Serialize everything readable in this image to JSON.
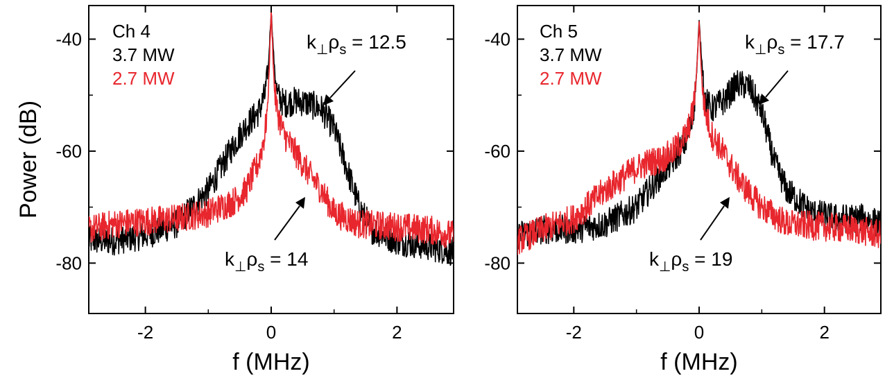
{
  "figure": {
    "ylabel": "Power (dB)",
    "colors": {
      "series_high": "#000000",
      "series_low": "#e8262d"
    }
  },
  "chart_data": [
    {
      "type": "line",
      "xlabel": "f (MHz)",
      "ylabel": "Power (dB)",
      "xlim": [
        -2.9,
        2.9
      ],
      "ylim": [
        -89,
        -34
      ],
      "xticks": [
        "-2",
        "0",
        "2"
      ],
      "yticks": [
        "-40",
        "-60",
        "-80"
      ],
      "legend_position": "top-left",
      "legend": {
        "title": "Ch 4",
        "entries": [
          "3.7 MW",
          "2.7 MW"
        ]
      },
      "series": [
        {
          "name": "3.7 MW",
          "color": "#000000",
          "x": [
            -2.9,
            -2.5,
            -2.0,
            -1.5,
            -1.0,
            -0.8,
            -0.6,
            -0.4,
            -0.2,
            -0.1,
            -0.05,
            0.0,
            0.05,
            0.1,
            0.2,
            0.4,
            0.6,
            0.8,
            1.0,
            1.2,
            1.4,
            1.6,
            2.0,
            2.5,
            2.9
          ],
          "y": [
            -76,
            -76,
            -75,
            -73,
            -67,
            -63,
            -59,
            -55.5,
            -53,
            -50,
            -46,
            -35,
            -45,
            -50,
            -51.5,
            -51,
            -51.5,
            -52.5,
            -56,
            -63,
            -70,
            -74,
            -76,
            -77,
            -78
          ]
        },
        {
          "name": "2.7 MW",
          "color": "#e8262d",
          "x": [
            -2.9,
            -2.5,
            -2.0,
            -1.5,
            -1.0,
            -0.6,
            -0.4,
            -0.2,
            -0.1,
            -0.05,
            0.0,
            0.05,
            0.1,
            0.2,
            0.4,
            0.6,
            0.8,
            1.0,
            1.4,
            2.0,
            2.5,
            2.9
          ],
          "y": [
            -74,
            -73,
            -72.5,
            -72,
            -71,
            -69,
            -67,
            -62,
            -57,
            -51,
            -35,
            -49,
            -53,
            -57,
            -60.5,
            -64,
            -67,
            -71,
            -73,
            -73.5,
            -74,
            -75
          ]
        }
      ],
      "annotations": [
        {
          "text": "k⊥ρs = 12.5",
          "at": [
            0.8,
            -49
          ]
        },
        {
          "text": "k⊥ρs = 14",
          "at": [
            0.5,
            -67
          ]
        }
      ]
    },
    {
      "type": "line",
      "xlabel": "f (MHz)",
      "ylabel": "",
      "xlim": [
        -2.9,
        2.9
      ],
      "ylim": [
        -89,
        -34
      ],
      "xticks": [
        "-2",
        "0",
        "2"
      ],
      "yticks": [
        "-40",
        "-60",
        "-80"
      ],
      "legend_position": "top-left",
      "legend": {
        "title": "Ch 5",
        "entries": [
          "3.7 MW",
          "2.7 MW"
        ]
      },
      "series": [
        {
          "name": "3.7 MW",
          "color": "#000000",
          "x": [
            -2.9,
            -2.5,
            -2.0,
            -1.5,
            -1.0,
            -0.8,
            -0.6,
            -0.4,
            -0.2,
            -0.1,
            -0.05,
            0.0,
            0.05,
            0.1,
            0.2,
            0.4,
            0.6,
            0.8,
            1.0,
            1.2,
            1.4,
            1.8,
            2.2,
            2.6,
            2.9
          ],
          "y": [
            -75,
            -74,
            -74,
            -73,
            -70,
            -67,
            -64,
            -61.5,
            -58,
            -54,
            -48,
            -37,
            -45,
            -51,
            -52.5,
            -51,
            -48,
            -48.5,
            -53,
            -62,
            -67,
            -71,
            -72,
            -72,
            -73
          ]
        },
        {
          "name": "2.7 MW",
          "color": "#e8262d",
          "x": [
            -2.9,
            -2.5,
            -2.0,
            -1.5,
            -1.0,
            -0.8,
            -0.6,
            -0.4,
            -0.2,
            -0.1,
            -0.05,
            0.0,
            0.05,
            0.1,
            0.2,
            0.4,
            0.6,
            0.8,
            1.0,
            1.4,
            2.0,
            2.5,
            2.9
          ],
          "y": [
            -76,
            -74,
            -72,
            -67,
            -63,
            -62,
            -61.5,
            -60,
            -57,
            -53,
            -48,
            -37,
            -49,
            -53,
            -57,
            -60.5,
            -64.5,
            -67.5,
            -70,
            -73,
            -73.5,
            -74,
            -75
          ]
        }
      ],
      "annotations": [
        {
          "text": "k⊥ρs = 17.7",
          "at": [
            1.0,
            -49
          ]
        },
        {
          "text": "k⊥ρs = 19",
          "at": [
            0.45,
            -67
          ]
        }
      ]
    }
  ]
}
